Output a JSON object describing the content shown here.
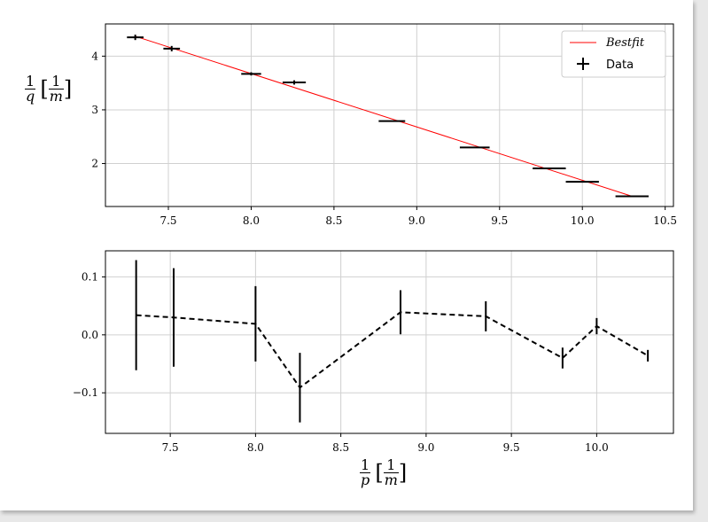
{
  "axis_labels": {
    "y_num": "1",
    "y_den": "q",
    "y_unit_num": "1",
    "y_unit_den": "m",
    "x_num": "1",
    "x_den": "p",
    "x_unit_num": "1",
    "x_unit_den": "m"
  },
  "colors": {
    "fit": "#ff0000",
    "data": "#000000",
    "residual": "#000000",
    "grid": "#d0d0d0"
  },
  "chart_data": [
    {
      "type": "scatter",
      "xlim": [
        7.12,
        10.55
      ],
      "ylim": [
        1.2,
        4.6
      ],
      "xticks": [
        7.5,
        8.0,
        8.5,
        9.0,
        9.5,
        10.0,
        10.5
      ],
      "xtick_labels": [
        "7.5",
        "8.0",
        "8.5",
        "9.0",
        "9.5",
        "10.0",
        "10.5"
      ],
      "yticks": [
        2,
        3,
        4
      ],
      "ytick_labels": [
        "2",
        "3",
        "4"
      ],
      "grid": true,
      "legend_position": "top-right",
      "series": [
        {
          "name": "Bestfit",
          "type": "line",
          "x": [
            7.3,
            10.3
          ],
          "y": [
            4.37,
            1.39
          ]
        },
        {
          "name": "Data",
          "type": "errorbar",
          "points": [
            {
              "x": 7.3,
              "y": 4.35,
              "xerr": 0.05,
              "yerr": 0.05
            },
            {
              "x": 7.52,
              "y": 4.14,
              "xerr": 0.05,
              "yerr": 0.05
            },
            {
              "x": 8.0,
              "y": 3.67,
              "xerr": 0.06,
              "yerr": 0.03
            },
            {
              "x": 8.26,
              "y": 3.51,
              "xerr": 0.07,
              "yerr": 0.04
            },
            {
              "x": 8.85,
              "y": 2.79,
              "xerr": 0.08,
              "yerr": 0.01
            },
            {
              "x": 9.35,
              "y": 2.3,
              "xerr": 0.09,
              "yerr": 0.01
            },
            {
              "x": 9.8,
              "y": 1.91,
              "xerr": 0.1,
              "yerr": 0.01
            },
            {
              "x": 10.0,
              "y": 1.66,
              "xerr": 0.1,
              "yerr": 0.01
            },
            {
              "x": 10.3,
              "y": 1.39,
              "xerr": 0.1,
              "yerr": 0.01
            }
          ]
        }
      ]
    },
    {
      "type": "line",
      "xlim": [
        7.12,
        10.45
      ],
      "ylim": [
        -0.17,
        0.145
      ],
      "xticks": [
        7.5,
        8.0,
        8.5,
        9.0,
        9.5,
        10.0
      ],
      "xtick_labels": [
        "7.5",
        "8.0",
        "8.5",
        "9.0",
        "9.5",
        "10.0"
      ],
      "yticks": [
        0.1,
        0.0,
        -0.1
      ],
      "ytick_labels": [
        "0.1",
        "0.0",
        "−0.1"
      ],
      "grid": true,
      "series": [
        {
          "name": "",
          "style": "dashed",
          "x": [
            7.3,
            7.52,
            8.0,
            8.26,
            8.85,
            9.35,
            9.8,
            10.0,
            10.3
          ],
          "y": [
            0.034,
            0.03,
            0.019,
            -0.091,
            0.039,
            0.032,
            -0.04,
            0.015,
            -0.036
          ],
          "yerr": [
            0.095,
            0.085,
            0.065,
            0.06,
            0.038,
            0.026,
            0.018,
            0.014,
            0.01
          ]
        }
      ]
    }
  ]
}
